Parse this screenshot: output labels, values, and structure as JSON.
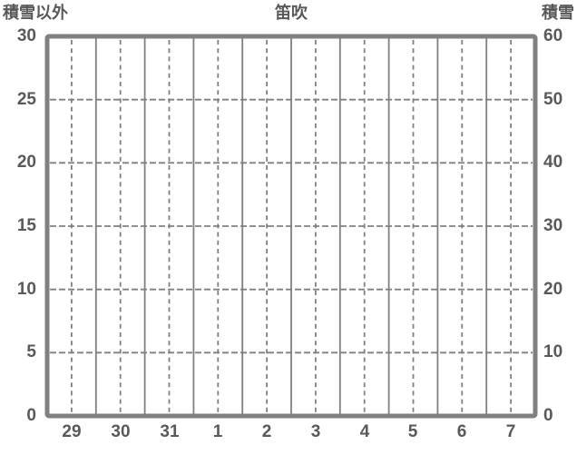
{
  "chart_data": {
    "type": "line",
    "title": "笛吹",
    "left_axis": {
      "label": "積雪以外",
      "min": 0,
      "max": 30,
      "ticks": [
        30,
        25,
        20,
        15,
        10,
        5,
        0
      ]
    },
    "right_axis": {
      "label": "積雪",
      "min": 0,
      "max": 60,
      "ticks": [
        60,
        50,
        40,
        30,
        20,
        10,
        0
      ]
    },
    "x_axis": {
      "tick_labels": [
        "29",
        "30",
        "31",
        "1",
        "2",
        "3",
        "4",
        "5",
        "6",
        "7"
      ]
    },
    "series": [],
    "grid": {
      "horizontal_dashed_at_left_ticks": true,
      "vertical_solid_at_day_boundaries": true,
      "vertical_dashed_at_day_midpoints": true
    },
    "legend": null,
    "colors": {
      "grid": "#808080",
      "border": "#808080",
      "text": "#595959",
      "background": "#ffffff"
    }
  }
}
